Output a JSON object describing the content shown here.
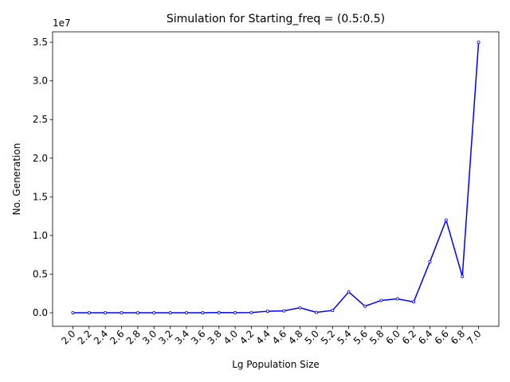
{
  "chart_data": {
    "type": "line",
    "title": "Simulation for Starting_freq = (0.5:0.5)",
    "x_label": "Lg Population Size",
    "y_label": "No. Generation",
    "y_offset_label": "1e7",
    "categories": [
      "2.0",
      "2.2",
      "2.4",
      "2.6",
      "2.8",
      "3.0",
      "3.2",
      "3.4",
      "3.6",
      "3.8",
      "4.0",
      "4.2",
      "4.4",
      "4.6",
      "4.8",
      "5.0",
      "5.2",
      "5.4",
      "5.6",
      "5.8",
      "6.0",
      "6.2",
      "6.4",
      "6.6",
      "6.8",
      "7.0"
    ],
    "values": [
      0,
      0,
      0,
      0,
      0,
      0,
      0,
      0,
      0,
      0.002,
      0.001,
      0.003,
      0.02,
      0.025,
      0.065,
      0.005,
      0.03,
      0.27,
      0.085,
      0.16,
      0.18,
      0.14,
      0.66,
      1.2,
      0.47,
      3.5
    ],
    "color": "#0000ff",
    "ylim": [
      -0.175,
      3.635
    ],
    "yticks": [
      {
        "value": 0,
        "label": "0.0"
      },
      {
        "value": 0.5,
        "label": "0.5"
      },
      {
        "value": 1,
        "label": "1.0"
      },
      {
        "value": 1.5,
        "label": "1.5"
      },
      {
        "value": 2,
        "label": "2.0"
      },
      {
        "value": 2.5,
        "label": "2.5"
      },
      {
        "value": 3,
        "label": "3.0"
      },
      {
        "value": 3.5,
        "label": "3.5"
      }
    ]
  }
}
